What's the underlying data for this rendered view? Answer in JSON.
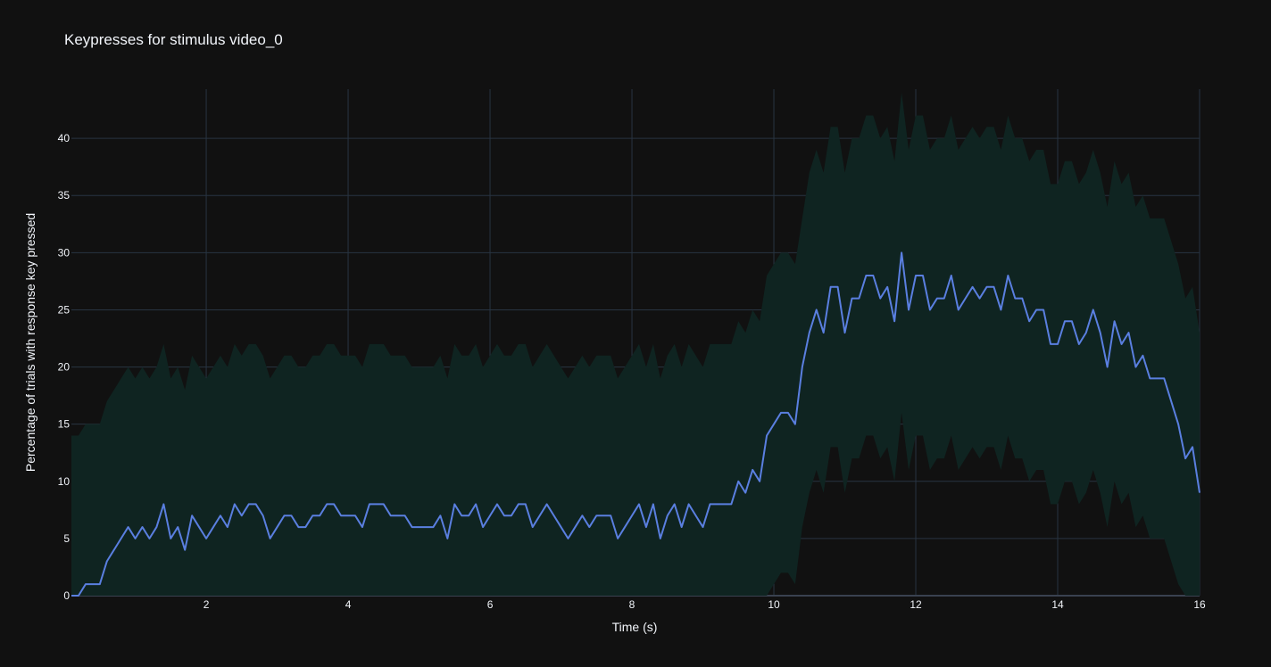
{
  "chart_data": {
    "type": "line",
    "title": "Keypresses for stimulus video_0",
    "xlabel": "Time (s)",
    "ylabel": "Percentage of trials with response key pressed",
    "xlim": [
      0.1,
      16
    ],
    "ylim": [
      0,
      44.3
    ],
    "x_ticks": [
      2,
      4,
      6,
      8,
      10,
      12,
      14,
      16
    ],
    "y_ticks": [
      0,
      5,
      10,
      15,
      20,
      25,
      30,
      35,
      40
    ],
    "grid": true,
    "legend": "none",
    "colors": {
      "background": "#111111",
      "grid": "#283442",
      "line": "#5a7fe0",
      "band": "#0f2421",
      "text": "#f2f5fa"
    },
    "x": [
      0.1,
      0.2,
      0.3,
      0.4,
      0.5,
      0.6,
      0.7,
      0.8,
      0.9,
      1.0,
      1.1,
      1.2,
      1.3,
      1.4,
      1.5,
      1.6,
      1.7,
      1.8,
      1.9,
      2.0,
      2.1,
      2.2,
      2.3,
      2.4,
      2.5,
      2.6,
      2.7,
      2.8,
      2.9,
      3.0,
      3.1,
      3.2,
      3.3,
      3.4,
      3.5,
      3.6,
      3.7,
      3.8,
      3.9,
      4.0,
      4.1,
      4.2,
      4.3,
      4.4,
      4.5,
      4.6,
      4.7,
      4.8,
      4.9,
      5.0,
      5.1,
      5.2,
      5.3,
      5.4,
      5.5,
      5.6,
      5.7,
      5.8,
      5.9,
      6.0,
      6.1,
      6.2,
      6.3,
      6.4,
      6.5,
      6.6,
      6.7,
      6.8,
      6.9,
      7.0,
      7.1,
      7.2,
      7.3,
      7.4,
      7.5,
      7.6,
      7.7,
      7.8,
      7.9,
      8.0,
      8.1,
      8.2,
      8.3,
      8.4,
      8.5,
      8.6,
      8.7,
      8.8,
      8.9,
      9.0,
      9.1,
      9.2,
      9.3,
      9.4,
      9.5,
      9.6,
      9.7,
      9.8,
      9.9,
      10.0,
      10.1,
      10.2,
      10.3,
      10.4,
      10.5,
      10.6,
      10.7,
      10.8,
      10.9,
      11.0,
      11.1,
      11.2,
      11.3,
      11.4,
      11.5,
      11.6,
      11.7,
      11.8,
      11.9,
      12.0,
      12.1,
      12.2,
      12.3,
      12.4,
      12.5,
      12.6,
      12.7,
      12.8,
      12.9,
      13.0,
      13.1,
      13.2,
      13.3,
      13.4,
      13.5,
      13.6,
      13.7,
      13.8,
      13.9,
      14.0,
      14.1,
      14.2,
      14.3,
      14.4,
      14.5,
      14.6,
      14.7,
      14.8,
      14.9,
      15.0,
      15.1,
      15.2,
      15.3,
      15.4,
      15.5,
      15.6,
      15.7,
      15.8,
      15.9,
      16.0
    ],
    "series": [
      {
        "values": [
          0,
          0,
          1,
          1,
          1,
          3,
          4,
          5,
          6,
          5,
          6,
          5,
          6,
          8,
          5,
          6,
          4,
          7,
          6,
          5,
          6,
          7,
          6,
          8,
          7,
          8,
          8,
          7,
          5,
          6,
          7,
          7,
          6,
          6,
          7,
          7,
          8,
          8,
          7,
          7,
          7,
          6,
          8,
          8,
          8,
          7,
          7,
          7,
          6,
          6,
          6,
          6,
          7,
          5,
          8,
          7,
          7,
          8,
          6,
          7,
          8,
          7,
          7,
          8,
          8,
          6,
          7,
          8,
          7,
          6,
          5,
          6,
          7,
          6,
          7,
          7,
          7,
          5,
          6,
          7,
          8,
          6,
          8,
          5,
          7,
          8,
          6,
          8,
          7,
          6,
          8,
          8,
          8,
          8,
          10,
          9,
          11,
          10,
          14,
          15,
          16,
          16,
          15,
          20,
          23,
          25,
          23,
          27,
          27,
          23,
          26,
          26,
          28,
          28,
          26,
          27,
          24,
          30,
          25,
          28,
          28,
          25,
          26,
          26,
          28,
          25,
          26,
          27,
          26,
          27,
          27,
          25,
          28,
          26,
          26,
          24,
          25,
          25,
          22,
          22,
          24,
          24,
          22,
          23,
          25,
          23,
          20,
          24,
          22,
          23,
          20,
          21,
          19,
          19,
          19,
          17,
          15,
          12,
          13,
          9
        ],
        "upper": [
          14,
          14,
          15,
          15,
          15,
          17,
          18,
          19,
          20,
          19,
          20,
          19,
          20,
          22,
          19,
          20,
          18,
          21,
          20,
          19,
          20,
          21,
          20,
          22,
          21,
          22,
          22,
          21,
          19,
          20,
          21,
          21,
          20,
          20,
          21,
          21,
          22,
          22,
          21,
          21,
          21,
          20,
          22,
          22,
          22,
          21,
          21,
          21,
          20,
          20,
          20,
          20,
          21,
          19,
          22,
          21,
          21,
          22,
          20,
          21,
          22,
          21,
          21,
          22,
          22,
          20,
          21,
          22,
          21,
          20,
          19,
          20,
          21,
          20,
          21,
          21,
          21,
          19,
          20,
          21,
          22,
          20,
          22,
          19,
          21,
          22,
          20,
          22,
          21,
          20,
          22,
          22,
          22,
          22,
          24,
          23,
          25,
          24,
          28,
          29,
          30,
          30,
          29,
          33,
          37,
          39,
          37,
          41,
          41,
          37,
          40,
          40,
          42,
          42,
          40,
          41,
          38,
          44,
          39,
          42,
          42,
          39,
          40,
          40,
          42,
          39,
          40,
          41,
          40,
          41,
          41,
          39,
          42,
          40,
          40,
          38,
          39,
          39,
          36,
          36,
          38,
          38,
          36,
          37,
          39,
          37,
          34,
          38,
          36,
          37,
          34,
          35,
          33,
          33,
          33,
          31,
          29,
          26,
          27,
          23
        ],
        "lower": [
          0,
          0,
          0,
          0,
          0,
          0,
          0,
          0,
          0,
          0,
          0,
          0,
          0,
          0,
          0,
          0,
          0,
          0,
          0,
          0,
          0,
          0,
          0,
          0,
          0,
          0,
          0,
          0,
          0,
          0,
          0,
          0,
          0,
          0,
          0,
          0,
          0,
          0,
          0,
          0,
          0,
          0,
          0,
          0,
          0,
          0,
          0,
          0,
          0,
          0,
          0,
          0,
          0,
          0,
          0,
          0,
          0,
          0,
          0,
          0,
          0,
          0,
          0,
          0,
          0,
          0,
          0,
          0,
          0,
          0,
          0,
          0,
          0,
          0,
          0,
          0,
          0,
          0,
          0,
          0,
          0,
          0,
          0,
          0,
          0,
          0,
          0,
          0,
          0,
          0,
          0,
          0,
          0,
          0,
          0,
          0,
          0,
          0,
          0,
          1,
          2,
          2,
          1,
          6,
          9,
          11,
          9,
          13,
          13,
          9,
          12,
          12,
          14,
          14,
          12,
          13,
          10,
          16,
          11,
          14,
          14,
          11,
          12,
          12,
          14,
          11,
          12,
          13,
          12,
          13,
          13,
          11,
          14,
          12,
          12,
          10,
          11,
          11,
          8,
          8,
          10,
          10,
          8,
          9,
          11,
          9,
          6,
          10,
          8,
          9,
          6,
          7,
          5,
          5,
          5,
          3,
          1,
          0,
          0,
          0
        ]
      }
    ]
  }
}
